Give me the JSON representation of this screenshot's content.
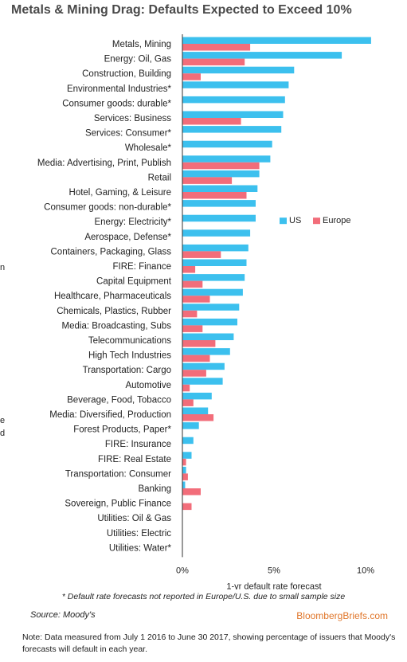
{
  "title": "Metals & Mining Drag: Defaults Expected to Exceed 10%",
  "footnote": "* Default rate forecasts not reported in Europe/U.S. due to small sample size",
  "source": "Source: Moody's",
  "brand": "BloombergBriefs.com",
  "note": "Note: Data measured from July 1 2016 to June 30 2017, showing percentage of issuers that Moody's forecasts will default in each year.",
  "edge_fragments": [
    "n",
    "e",
    "d"
  ],
  "colors": {
    "us": "#3cc0ee",
    "europe": "#f26d7a",
    "brand": "#e0762a"
  },
  "chart_data": {
    "type": "bar",
    "orientation": "horizontal",
    "title": "Metals & Mining Drag: Defaults Expected to Exceed 10%",
    "xlabel": "1-yr default rate forecast",
    "ylabel": "",
    "xlim": [
      0,
      10
    ],
    "xticks": [
      0,
      5,
      10
    ],
    "xtick_labels": [
      "0%",
      "5%",
      "10%"
    ],
    "grid": false,
    "legend_position": "right-middle",
    "categories": [
      "Metals, Mining",
      "Energy: Oil, Gas",
      "Construction, Building",
      "Environmental Industries*",
      "Consumer goods: durable*",
      "Services: Business",
      "Services: Consumer*",
      "Wholesale*",
      "Media: Advertising, Print, Publish",
      "Retail",
      "Hotel, Gaming, & Leisure",
      "Consumer goods: non-durable*",
      "Energy: Electricity*",
      "Aerospace, Defense*",
      "Containers, Packaging, Glass",
      "FIRE: Finance",
      "Capital Equipment",
      "Healthcare, Pharmaceuticals",
      "Chemicals, Plastics, Rubber",
      "Media: Broadcasting, Subs",
      "Telecommunications",
      "High Tech Industries",
      "Transportation: Cargo",
      "Automotive",
      "Beverage, Food, Tobacco",
      "Media: Diversified, Production",
      "Forest Products, Paper*",
      "FIRE: Insurance",
      "FIRE: Real Estate",
      "Transportation: Consumer",
      "Banking",
      "Sovereign, Public Finance",
      "Utilities: Oil & Gas",
      "Utilities: Electric",
      "Utilities: Water*"
    ],
    "series": [
      {
        "name": "US",
        "values": [
          10.3,
          8.7,
          6.1,
          5.8,
          5.6,
          5.5,
          5.4,
          4.9,
          4.8,
          4.2,
          4.1,
          4.0,
          4.0,
          3.7,
          3.6,
          3.5,
          3.4,
          3.3,
          3.1,
          3.0,
          2.8,
          2.6,
          2.3,
          2.2,
          1.6,
          1.4,
          0.9,
          0.6,
          0.5,
          0.2,
          0.15,
          0.0,
          0.0,
          0.0,
          0.0
        ]
      },
      {
        "name": "Europe",
        "values": [
          3.7,
          3.4,
          1.0,
          0.0,
          0.0,
          3.2,
          0.0,
          0.0,
          4.2,
          2.7,
          3.5,
          0.0,
          0.0,
          0.0,
          2.1,
          0.7,
          1.1,
          1.5,
          0.8,
          1.1,
          1.8,
          1.5,
          1.3,
          0.4,
          0.6,
          1.7,
          0.0,
          0.0,
          0.2,
          0.3,
          1.0,
          0.5,
          0.0,
          0.0,
          0.0
        ]
      }
    ]
  }
}
